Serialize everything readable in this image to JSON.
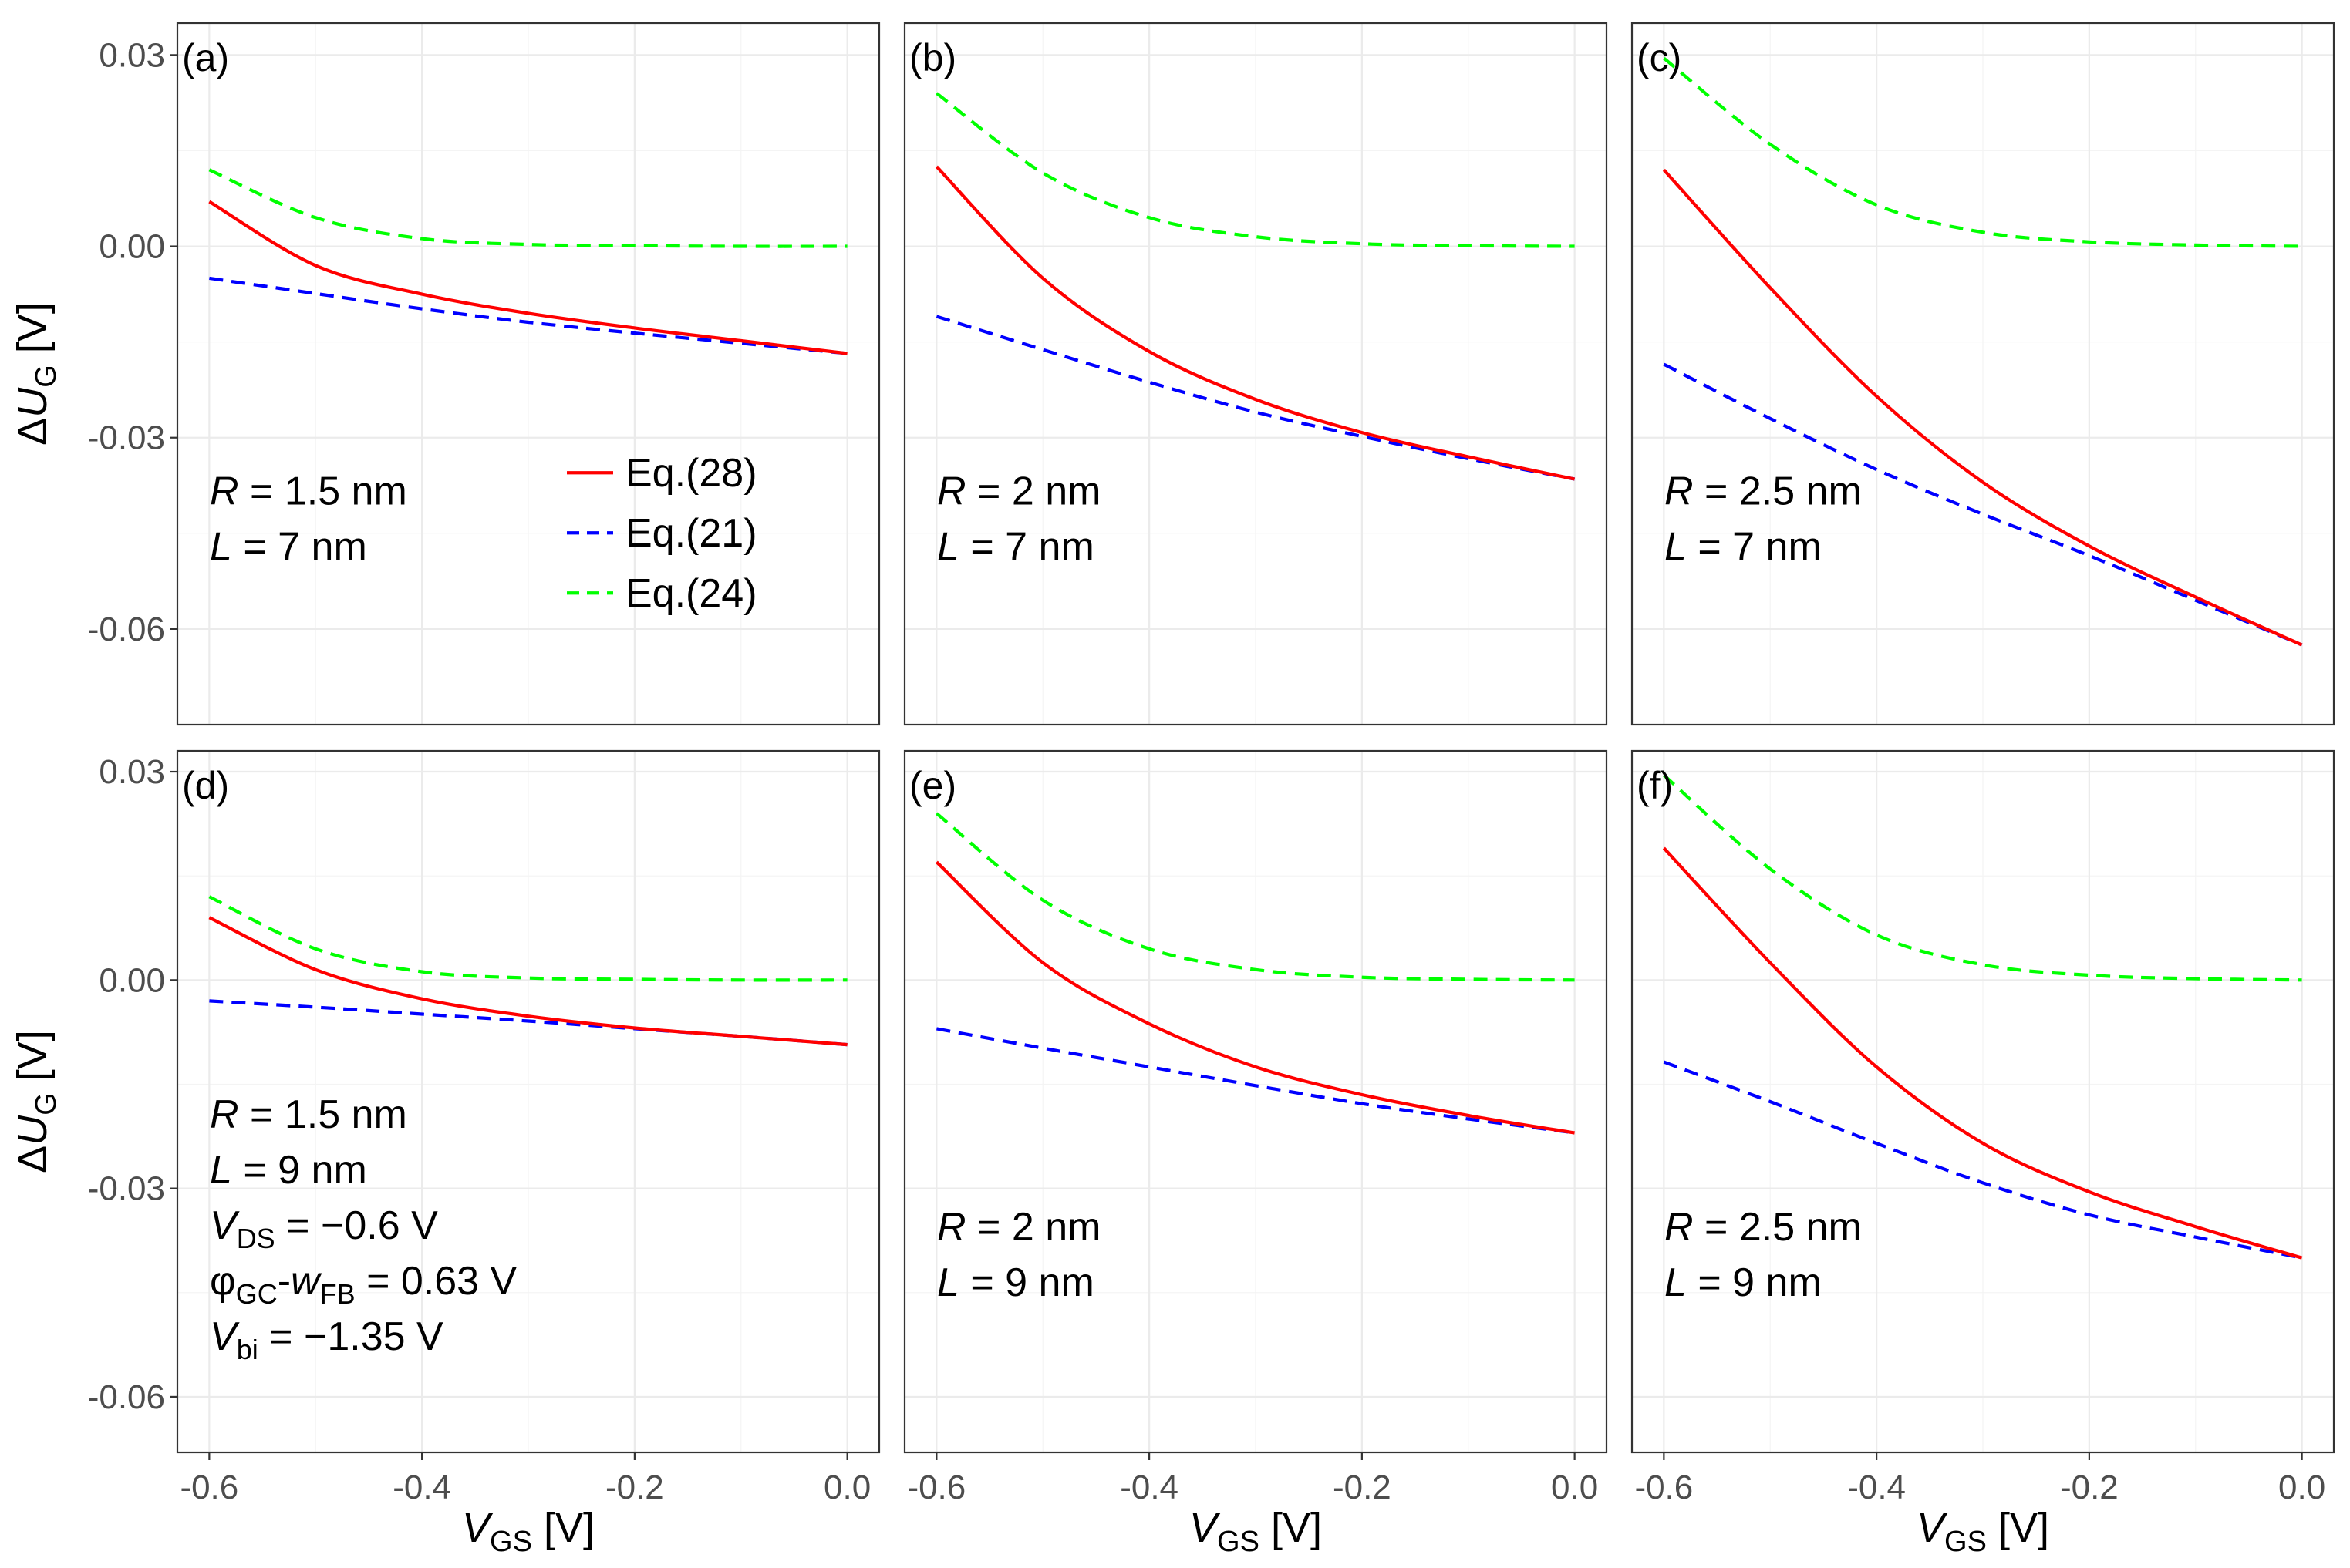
{
  "chart_data": {
    "type": "line",
    "layout": "2x3 facet grid",
    "x_axis": {
      "label": "V",
      "label_sub": "GS",
      "unit": "[V]",
      "xlim": [
        -0.6,
        0.0
      ],
      "ticks": [
        -0.6,
        -0.4,
        -0.2,
        0.0
      ],
      "tick_labels": [
        "-0.6",
        "-0.4",
        "-0.2",
        "0.0"
      ]
    },
    "y_axis": {
      "label": "ΔU",
      "label_sub": "G",
      "unit": "[V]",
      "ticks": [
        0.03,
        0.0,
        -0.03,
        -0.06
      ],
      "tick_labels": [
        "0.03",
        "0.00",
        "-0.03",
        "-0.06"
      ]
    },
    "rows": [
      {
        "ylim": [
          -0.075,
          0.035
        ]
      },
      {
        "ylim": [
          -0.068,
          0.033
        ]
      }
    ],
    "legend": {
      "placement": "inside panel (a), right side",
      "entries": [
        {
          "label": "Eq.(28)",
          "color": "#ff0000",
          "dash": "solid"
        },
        {
          "label": "Eq.(21)",
          "color": "#0000ff",
          "dash": "dashed"
        },
        {
          "label": "Eq.(24)",
          "color": "#00ff00",
          "dash": "dashed"
        }
      ]
    },
    "x": [
      -0.6,
      -0.5,
      -0.4,
      -0.3,
      -0.2,
      -0.1,
      0.0
    ],
    "panels": [
      {
        "tag": "(a)",
        "R": "1.5 nm",
        "L": "7 nm",
        "series": [
          {
            "name": "Eq.(28)",
            "values": [
              0.007,
              -0.003,
              -0.0075,
              -0.0105,
              -0.0128,
              -0.0148,
              -0.0168
            ]
          },
          {
            "name": "Eq.(21)",
            "values": [
              -0.005,
              -0.0074,
              -0.0098,
              -0.0119,
              -0.0136,
              -0.0152,
              -0.0168
            ]
          },
          {
            "name": "Eq.(24)",
            "values": [
              0.012,
              0.0045,
              0.0012,
              0.0003,
              0.0001,
              0.0,
              0.0
            ]
          }
        ]
      },
      {
        "tag": "(b)",
        "R": "2 nm",
        "L": "7 nm",
        "series": [
          {
            "name": "Eq.(28)",
            "values": [
              0.0125,
              -0.005,
              -0.0165,
              -0.024,
              -0.0292,
              -0.033,
              -0.0365
            ]
          },
          {
            "name": "Eq.(21)",
            "values": [
              -0.011,
              -0.0162,
              -0.0213,
              -0.026,
              -0.0298,
              -0.0333,
              -0.0365
            ]
          },
          {
            "name": "Eq.(24)",
            "values": [
              0.024,
              0.0115,
              0.0045,
              0.0015,
              0.0004,
              0.0001,
              0.0
            ]
          }
        ]
      },
      {
        "tag": "(c)",
        "R": "2.5 nm",
        "L": "7 nm",
        "series": [
          {
            "name": "Eq.(28)",
            "values": [
              0.012,
              -0.0065,
              -0.0235,
              -0.037,
              -0.047,
              -0.055,
              -0.0625
            ]
          },
          {
            "name": "Eq.(21)",
            "values": [
              -0.0185,
              -0.027,
              -0.035,
              -0.042,
              -0.0485,
              -0.0555,
              -0.0625
            ]
          },
          {
            "name": "Eq.(24)",
            "values": [
              0.0295,
              0.016,
              0.0065,
              0.0022,
              0.0007,
              0.0002,
              0.0
            ]
          }
        ]
      },
      {
        "tag": "(d)",
        "R": "1.5 nm",
        "L": "9 nm",
        "VDS": "−0.6 V",
        "phi_w": "0.63 V",
        "Vbi": "−1.35 V",
        "series": [
          {
            "name": "Eq.(28)",
            "values": [
              0.009,
              0.0015,
              -0.0027,
              -0.0052,
              -0.0069,
              -0.0081,
              -0.0093
            ]
          },
          {
            "name": "Eq.(21)",
            "values": [
              -0.003,
              -0.0039,
              -0.0049,
              -0.0059,
              -0.007,
              -0.0081,
              -0.0093
            ]
          },
          {
            "name": "Eq.(24)",
            "values": [
              0.012,
              0.0045,
              0.0012,
              0.0003,
              0.0001,
              0.0,
              0.0
            ]
          }
        ]
      },
      {
        "tag": "(e)",
        "R": "2 nm",
        "L": "9 nm",
        "series": [
          {
            "name": "Eq.(28)",
            "values": [
              0.017,
              0.0025,
              -0.0063,
              -0.0125,
              -0.0165,
              -0.0195,
              -0.022
            ]
          },
          {
            "name": "Eq.(21)",
            "values": [
              -0.007,
              -0.0098,
              -0.0125,
              -0.0152,
              -0.0178,
              -0.02,
              -0.022
            ]
          },
          {
            "name": "Eq.(24)",
            "values": [
              0.024,
              0.0115,
              0.0045,
              0.0015,
              0.0004,
              0.0001,
              0.0
            ]
          }
        ]
      },
      {
        "tag": "(f)",
        "R": "2.5 nm",
        "L": "9 nm",
        "series": [
          {
            "name": "Eq.(28)",
            "values": [
              0.019,
              0.0025,
              -0.0125,
              -0.0235,
              -0.0305,
              -0.0355,
              -0.04
            ]
          },
          {
            "name": "Eq.(21)",
            "values": [
              -0.0118,
              -0.0175,
              -0.0235,
              -0.0292,
              -0.0338,
              -0.037,
              -0.04
            ]
          },
          {
            "name": "Eq.(24)",
            "values": [
              0.0295,
              0.016,
              0.0065,
              0.0022,
              0.0007,
              0.0002,
              0.0
            ]
          }
        ]
      }
    ]
  },
  "colors": {
    "eq28": "#ff0000",
    "eq21": "#0000ff",
    "eq24": "#00ff00",
    "grid": "#ebebeb",
    "panel_border": "#333333",
    "tick_text": "#4d4d4d"
  }
}
